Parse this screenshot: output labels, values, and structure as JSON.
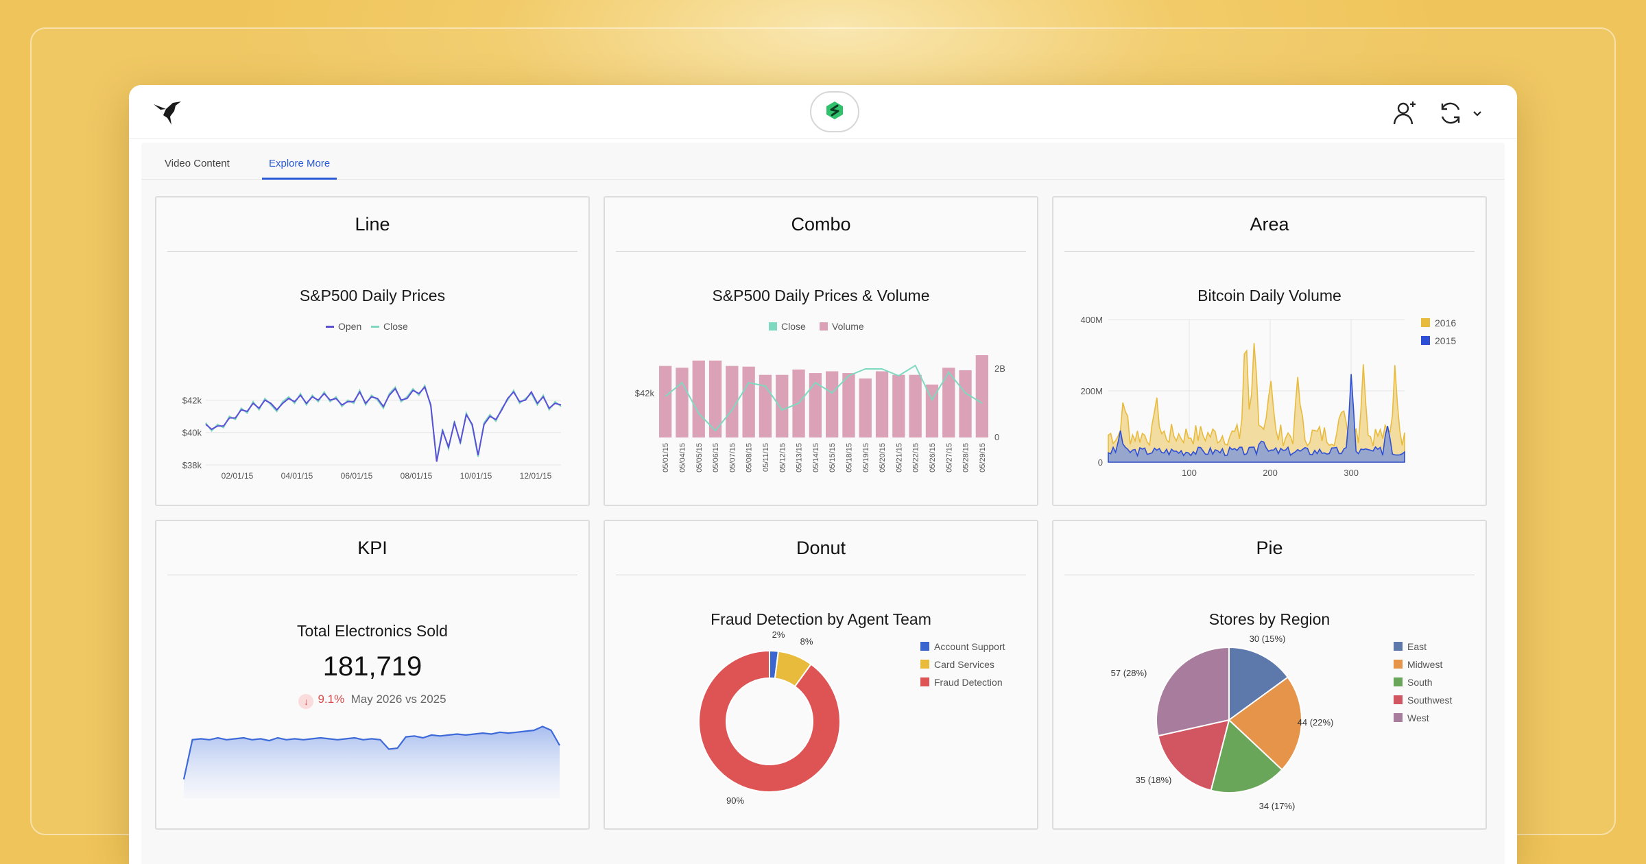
{
  "header": {
    "logo_icon": "hummingbird-logo-icon",
    "center_icon": "green-s-badge-icon",
    "add_user_icon": "add-user-icon",
    "refresh_icon": "refresh-icon",
    "dropdown_icon": "chevron-down-icon"
  },
  "tabs": [
    {
      "label": "Video Content",
      "active": false
    },
    {
      "label": "Explore More",
      "active": true
    }
  ],
  "cards": {
    "line": {
      "heading": "Line",
      "chart_title": "S&P500 Daily Prices"
    },
    "combo": {
      "heading": "Combo",
      "chart_title": "S&P500 Daily Prices & Volume"
    },
    "area": {
      "heading": "Area",
      "chart_title": "Bitcoin Daily Volume"
    },
    "kpi": {
      "heading": "KPI",
      "chart_title": "Total Electronics Sold",
      "value": "181,719",
      "delta_pct": "9.1%",
      "delta_text": "May 2026 vs 2025",
      "trend_direction": "down"
    },
    "donut": {
      "heading": "Donut",
      "chart_title": "Fraud Detection by Agent Team"
    },
    "pie": {
      "heading": "Pie",
      "chart_title": "Stores by Region"
    }
  },
  "chart_data": [
    {
      "type": "line",
      "title": "S&P500 Daily Prices",
      "legend": [
        "Open",
        "Close"
      ],
      "colors": {
        "Open": "#5b4fd6",
        "Close": "#7fd8c0"
      },
      "y_ticks": [
        "$42k",
        "$40k",
        "$38k"
      ],
      "ylim": [
        38000,
        43500
      ],
      "x_ticks": [
        "02/01/15",
        "04/01/15",
        "06/01/15",
        "08/01/15",
        "10/01/15",
        "12/01/15"
      ],
      "series": [
        {
          "name": "Close",
          "values": [
            40600,
            40100,
            40500,
            40300,
            41000,
            40800,
            41500,
            41200,
            41900,
            41400,
            42100,
            41700,
            41300,
            41900,
            42200,
            41800,
            42400,
            41700,
            42300,
            41900,
            42500,
            41900,
            42200,
            41600,
            42000,
            41800,
            42600,
            41700,
            42300,
            42000,
            41500,
            42400,
            42800,
            41900,
            42200,
            42700,
            42300,
            42900,
            41600,
            38300,
            40200,
            39000,
            40700,
            39300,
            41200,
            40400,
            38500,
            40600,
            41100,
            40700,
            41500,
            42000,
            42600,
            41800,
            42100,
            42400,
            41700,
            42300,
            41400,
            41900,
            41600
          ]
        },
        {
          "name": "Open",
          "values": [
            40500,
            40200,
            40400,
            40400,
            40900,
            40900,
            41400,
            41300,
            41800,
            41500,
            42000,
            41800,
            41400,
            41800,
            42100,
            41900,
            42300,
            41800,
            42200,
            42000,
            42400,
            42000,
            42100,
            41700,
            41900,
            41900,
            42500,
            41800,
            42200,
            42100,
            41600,
            42300,
            42700,
            42000,
            42100,
            42600,
            42400,
            42800,
            41700,
            38200,
            40100,
            39100,
            40600,
            39400,
            41100,
            40500,
            38600,
            40500,
            41000,
            40800,
            41400,
            42100,
            42500,
            41900,
            42000,
            42500,
            41800,
            42200,
            41500,
            41800,
            41700
          ]
        }
      ]
    },
    {
      "type": "bar",
      "title": "S&P500 Daily Prices & Volume",
      "legend": [
        "Close",
        "Volume"
      ],
      "colors": {
        "Close": "#7fd8c0",
        "Volume": "#dba1b6"
      },
      "left_axis_ticks": [
        "$42k"
      ],
      "right_axis_ticks": [
        "2B",
        "0"
      ],
      "categories": [
        "05/01/15",
        "05/04/15",
        "05/05/15",
        "05/06/15",
        "05/07/15",
        "05/08/15",
        "05/11/15",
        "05/12/15",
        "05/13/15",
        "05/14/15",
        "05/15/15",
        "05/18/15",
        "05/19/15",
        "05/20/15",
        "05/21/15",
        "05/22/15",
        "05/26/15",
        "05/27/15",
        "05/28/15",
        "05/29/15"
      ],
      "series": [
        {
          "name": "Volume",
          "values": [
            2.0,
            1.95,
            2.15,
            2.15,
            2.0,
            1.98,
            1.75,
            1.75,
            1.9,
            1.8,
            1.85,
            1.8,
            1.65,
            1.85,
            1.75,
            1.75,
            1.48,
            1.95,
            1.88,
            2.3
          ]
        },
        {
          "name": "Close",
          "values": [
            42000,
            42400,
            41500,
            41000,
            41600,
            42400,
            42300,
            41600,
            41800,
            42400,
            42100,
            42600,
            42800,
            42800,
            42600,
            42900,
            41900,
            42700,
            42100,
            41800
          ]
        }
      ]
    },
    {
      "type": "area",
      "title": "Bitcoin Daily Volume",
      "legend": [
        "2016",
        "2015"
      ],
      "colors": {
        "2016": "#e8bb3d",
        "2015": "#2d4fd6"
      },
      "y_ticks": [
        "400M",
        "200M",
        "0"
      ],
      "x_ticks": [
        "100",
        "200",
        "300"
      ],
      "ylim": [
        0,
        400
      ],
      "xlim": [
        0,
        366
      ]
    },
    {
      "type": "area",
      "title": "Total Electronics Sold",
      "values": [
        20,
        62,
        63,
        62,
        64,
        62,
        63,
        64,
        62,
        63,
        61,
        64,
        62,
        63,
        62,
        63,
        64,
        63,
        62,
        63,
        64,
        62,
        63,
        62,
        52,
        53,
        65,
        66,
        64,
        67,
        66,
        67,
        68,
        67,
        68,
        69,
        68,
        70,
        69,
        70,
        71,
        72,
        76,
        72,
        56
      ],
      "color": "#3d6ad8"
    },
    {
      "type": "pie",
      "title": "Fraud Detection by Agent Team",
      "donut": true,
      "categories": [
        "Account Support",
        "Card Services",
        "Fraud Detection"
      ],
      "values": [
        2,
        8,
        90
      ],
      "labels": [
        "2%",
        "8%",
        "90%"
      ],
      "colors": [
        "#3b66d0",
        "#e8bb3d",
        "#de5454"
      ]
    },
    {
      "type": "pie",
      "title": "Stores by Region",
      "categories": [
        "East",
        "Midwest",
        "South",
        "Southwest",
        "West"
      ],
      "values": [
        30,
        44,
        34,
        35,
        57
      ],
      "labels": [
        "30 (15%)",
        "44 (22%)",
        "34 (17%)",
        "35 (18%)",
        "57 (28%)"
      ],
      "colors": [
        "#5d78ab",
        "#e6944a",
        "#6aa659",
        "#d25661",
        "#a77c9c"
      ]
    }
  ]
}
